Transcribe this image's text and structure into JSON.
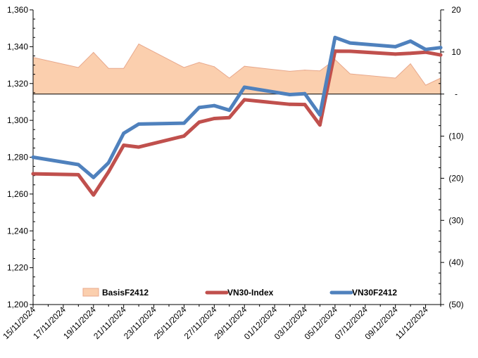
{
  "chart_data": {
    "type": "line",
    "x_tick_labels": [
      "15/11/2024",
      "17/11/2024",
      "19/11/2024",
      "21/11/2024",
      "23/11/2024",
      "25/11/2024",
      "27/11/2024",
      "29/11/2024",
      "01/12/2024",
      "03/12/2024",
      "05/12/2024",
      "07/12/2024",
      "09/12/2024",
      "11/12/2024"
    ],
    "x_range_days": [
      0,
      27
    ],
    "left_axis": {
      "min": 1200,
      "max": 1360,
      "step": 20,
      "tick_labels": [
        "1,200",
        "1,220",
        "1,240",
        "1,260",
        "1,280",
        "1,300",
        "1,320",
        "1,340",
        "1,360"
      ]
    },
    "right_axis": {
      "min": -50,
      "max": 20,
      "step": 10,
      "tick_labels": [
        "(50)",
        "(40)",
        "(30)",
        "(20)",
        "(10)",
        "-",
        "10",
        "20"
      ]
    },
    "series": [
      {
        "name": "BasisF2412",
        "type": "area",
        "axis": "right",
        "fill": "#FBCFAE",
        "stroke": "#E8A88C",
        "points": [
          [
            0,
            8.7
          ],
          [
            3,
            6.3
          ],
          [
            4,
            9.9
          ],
          [
            5,
            6.1
          ],
          [
            6,
            6.1
          ],
          [
            7,
            11.9
          ],
          [
            10,
            6.3
          ],
          [
            11,
            7.5
          ],
          [
            12,
            6.5
          ],
          [
            13,
            3.8
          ],
          [
            14,
            6.6
          ],
          [
            17,
            5.4
          ],
          [
            18,
            5.7
          ],
          [
            19,
            5.5
          ],
          [
            20,
            8.2
          ],
          [
            21,
            4.8
          ],
          [
            24,
            3.8
          ],
          [
            25,
            7.2
          ],
          [
            26,
            2.1
          ],
          [
            27,
            3.8
          ]
        ]
      },
      {
        "name": "VN30-Index",
        "type": "line",
        "axis": "left",
        "color": "#C0504D",
        "points": [
          [
            0,
            1271
          ],
          [
            3,
            1270.5
          ],
          [
            4,
            1259.5
          ],
          [
            5,
            1272
          ],
          [
            6,
            1286.5
          ],
          [
            7,
            1285.5
          ],
          [
            10,
            1291.5
          ],
          [
            11,
            1299
          ],
          [
            12,
            1301
          ],
          [
            13,
            1301.5
          ],
          [
            14,
            1311.2
          ],
          [
            17,
            1308.7
          ],
          [
            18,
            1308.6
          ],
          [
            19,
            1297.5
          ],
          [
            20,
            1337.6
          ],
          [
            21,
            1337.5
          ],
          [
            24,
            1336
          ],
          [
            25,
            1336.4
          ],
          [
            26,
            1337
          ],
          [
            27,
            1335.5
          ]
        ]
      },
      {
        "name": "VN30F2412",
        "type": "line",
        "axis": "left",
        "color": "#4F81BD",
        "points": [
          [
            0,
            1280
          ],
          [
            3,
            1276
          ],
          [
            4,
            1269
          ],
          [
            5,
            1277
          ],
          [
            6,
            1293
          ],
          [
            7,
            1298
          ],
          [
            10,
            1298.5
          ],
          [
            11,
            1307
          ],
          [
            12,
            1308
          ],
          [
            13,
            1305.5
          ],
          [
            14,
            1318
          ],
          [
            17,
            1314
          ],
          [
            18,
            1314.5
          ],
          [
            19,
            1303
          ],
          [
            20,
            1345
          ],
          [
            21,
            1342
          ],
          [
            24,
            1340
          ],
          [
            25,
            1343
          ],
          [
            26,
            1338.5
          ],
          [
            27,
            1339.5
          ]
        ]
      }
    ],
    "legend": [
      "BasisF2412",
      "VN30-Index",
      "VN30F2412"
    ],
    "legend_position": "bottom-inside"
  }
}
